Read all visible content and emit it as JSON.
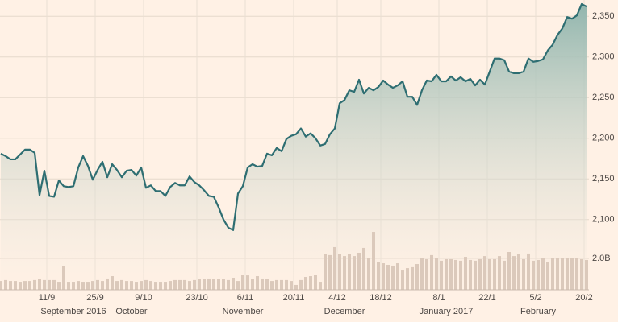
{
  "chart_data": {
    "type": "line",
    "categories": [
      null,
      null,
      null,
      null,
      null,
      null,
      null,
      null,
      null,
      null,
      "11/9",
      null,
      null,
      null,
      null,
      null,
      null,
      null,
      null,
      null,
      "25/9",
      null,
      null,
      null,
      null,
      null,
      null,
      null,
      null,
      null,
      "9/10",
      null,
      null,
      null,
      null,
      null,
      null,
      null,
      null,
      null,
      null,
      "23/10",
      null,
      null,
      null,
      null,
      null,
      null,
      null,
      null,
      null,
      "6/11",
      null,
      null,
      null,
      null,
      null,
      null,
      null,
      null,
      null,
      "20/11",
      null,
      null,
      null,
      null,
      null,
      null,
      null,
      null,
      "4/12",
      null,
      null,
      null,
      null,
      null,
      null,
      null,
      null,
      "18/12",
      null,
      null,
      null,
      null,
      null,
      null,
      null,
      null,
      null,
      null,
      null,
      "8/1",
      null,
      null,
      null,
      null,
      null,
      null,
      null,
      null,
      null,
      "22/1",
      null,
      null,
      null,
      null,
      null,
      null,
      null,
      null,
      null,
      "5/2",
      null,
      null,
      null,
      null,
      null,
      null,
      null,
      null,
      null,
      "20/2"
    ],
    "months": [
      null,
      null,
      null,
      null,
      null,
      null,
      null,
      null,
      null,
      null,
      null,
      null,
      null,
      null,
      null,
      "September 2016",
      null,
      null,
      null,
      null,
      null,
      null,
      null,
      null,
      null,
      null,
      null,
      "October",
      null,
      null,
      null,
      null,
      null,
      null,
      null,
      null,
      null,
      null,
      null,
      null,
      null,
      null,
      null,
      null,
      null,
      null,
      null,
      null,
      null,
      null,
      "November",
      null,
      null,
      null,
      null,
      null,
      null,
      null,
      null,
      null,
      null,
      null,
      null,
      null,
      null,
      null,
      null,
      null,
      null,
      null,
      null,
      "December",
      null,
      null,
      null,
      null,
      null,
      null,
      null,
      null,
      null,
      null,
      null,
      null,
      null,
      null,
      null,
      null,
      null,
      null,
      null,
      null,
      "January 2017",
      null,
      null,
      null,
      null,
      null,
      null,
      null,
      null,
      null,
      null,
      null,
      null,
      null,
      null,
      null,
      null,
      null,
      null,
      "February",
      null,
      null,
      null,
      null,
      null,
      null,
      null,
      null,
      null,
      null
    ],
    "values": [
      2181,
      2178,
      2174,
      2174,
      2180,
      2186,
      2186,
      2182,
      2130,
      2160,
      2129,
      2128,
      2148,
      2141,
      2140,
      2141,
      2164,
      2178,
      2166,
      2149,
      2161,
      2171,
      2152,
      2168,
      2161,
      2152,
      2160,
      2161,
      2154,
      2164,
      2139,
      2142,
      2135,
      2135,
      2129,
      2140,
      2145,
      2142,
      2142,
      2153,
      2146,
      2142,
      2136,
      2129,
      2128,
      2115,
      2100,
      2090,
      2087,
      2132,
      2141,
      2164,
      2168,
      2165,
      2166,
      2181,
      2179,
      2188,
      2184,
      2199,
      2203,
      2205,
      2212,
      2202,
      2206,
      2200,
      2191,
      2193,
      2205,
      2212,
      2243,
      2247,
      2259,
      2257,
      2272,
      2255,
      2262,
      2259,
      2263,
      2271,
      2266,
      2262,
      2265,
      2270,
      2251,
      2251,
      2241,
      2259,
      2271,
      2270,
      2278,
      2270,
      2270,
      2276,
      2271,
      2275,
      2270,
      2273,
      2265,
      2272,
      2266,
      2282,
      2298,
      2298,
      2296,
      2282,
      2280,
      2280,
      2282,
      2298,
      2294,
      2295,
      2297,
      2308,
      2315,
      2327,
      2335,
      2349,
      2347,
      2351,
      2365,
      2362
    ],
    "color": "#2e6e72",
    "ylim": [
      2030,
      2370
    ],
    "yticks": [
      {
        "value": 2100,
        "label": "2,100"
      },
      {
        "value": 2150,
        "label": "2,150"
      },
      {
        "value": 2200,
        "label": "2,200"
      },
      {
        "value": 2250,
        "label": "2,250"
      },
      {
        "value": 2300,
        "label": "2,300"
      },
      {
        "value": 2350,
        "label": "2,350"
      }
    ],
    "volume_values": [
      0.56,
      0.62,
      0.56,
      0.56,
      0.51,
      0.56,
      0.56,
      0.62,
      0.67,
      0.62,
      0.62,
      0.62,
      0.51,
      1.49,
      0.51,
      0.51,
      0.56,
      0.51,
      0.51,
      0.56,
      0.62,
      0.56,
      0.72,
      0.87,
      0.56,
      0.62,
      0.56,
      0.56,
      0.51,
      0.56,
      0.62,
      0.56,
      0.51,
      0.51,
      0.51,
      0.56,
      0.62,
      0.62,
      0.62,
      0.56,
      0.62,
      0.67,
      0.67,
      0.72,
      0.67,
      0.67,
      0.67,
      0.62,
      0.77,
      0.56,
      0.97,
      0.92,
      0.67,
      0.87,
      0.72,
      0.67,
      0.56,
      0.62,
      0.62,
      0.62,
      0.56,
      0.31,
      0.62,
      0.82,
      0.87,
      0.97,
      0.51,
      2.26,
      2.21,
      2.72,
      2.26,
      2.15,
      2.26,
      2.15,
      2.36,
      2.67,
      2.05,
      3.69,
      1.79,
      1.69,
      1.59,
      1.54,
      1.69,
      1.23,
      1.38,
      1.44,
      1.64,
      2.05,
      1.95,
      2.21,
      2.0,
      1.85,
      1.95,
      1.95,
      1.9,
      1.85,
      2.1,
      1.9,
      1.85,
      1.95,
      2.15,
      1.95,
      1.95,
      2.15,
      1.85,
      2.41,
      2.15,
      2.26,
      1.95,
      2.31,
      1.85,
      1.9,
      2.05,
      1.79,
      2.05,
      2.05,
      2.0,
      2.05,
      2.0,
      2.05,
      1.95,
      1.9
    ],
    "volume_color": "#dbc9bb",
    "volume_ylim": [
      0,
      4
    ],
    "volume_yticks": [
      {
        "value": 2,
        "label": "2.0B"
      }
    ],
    "grid": true
  }
}
